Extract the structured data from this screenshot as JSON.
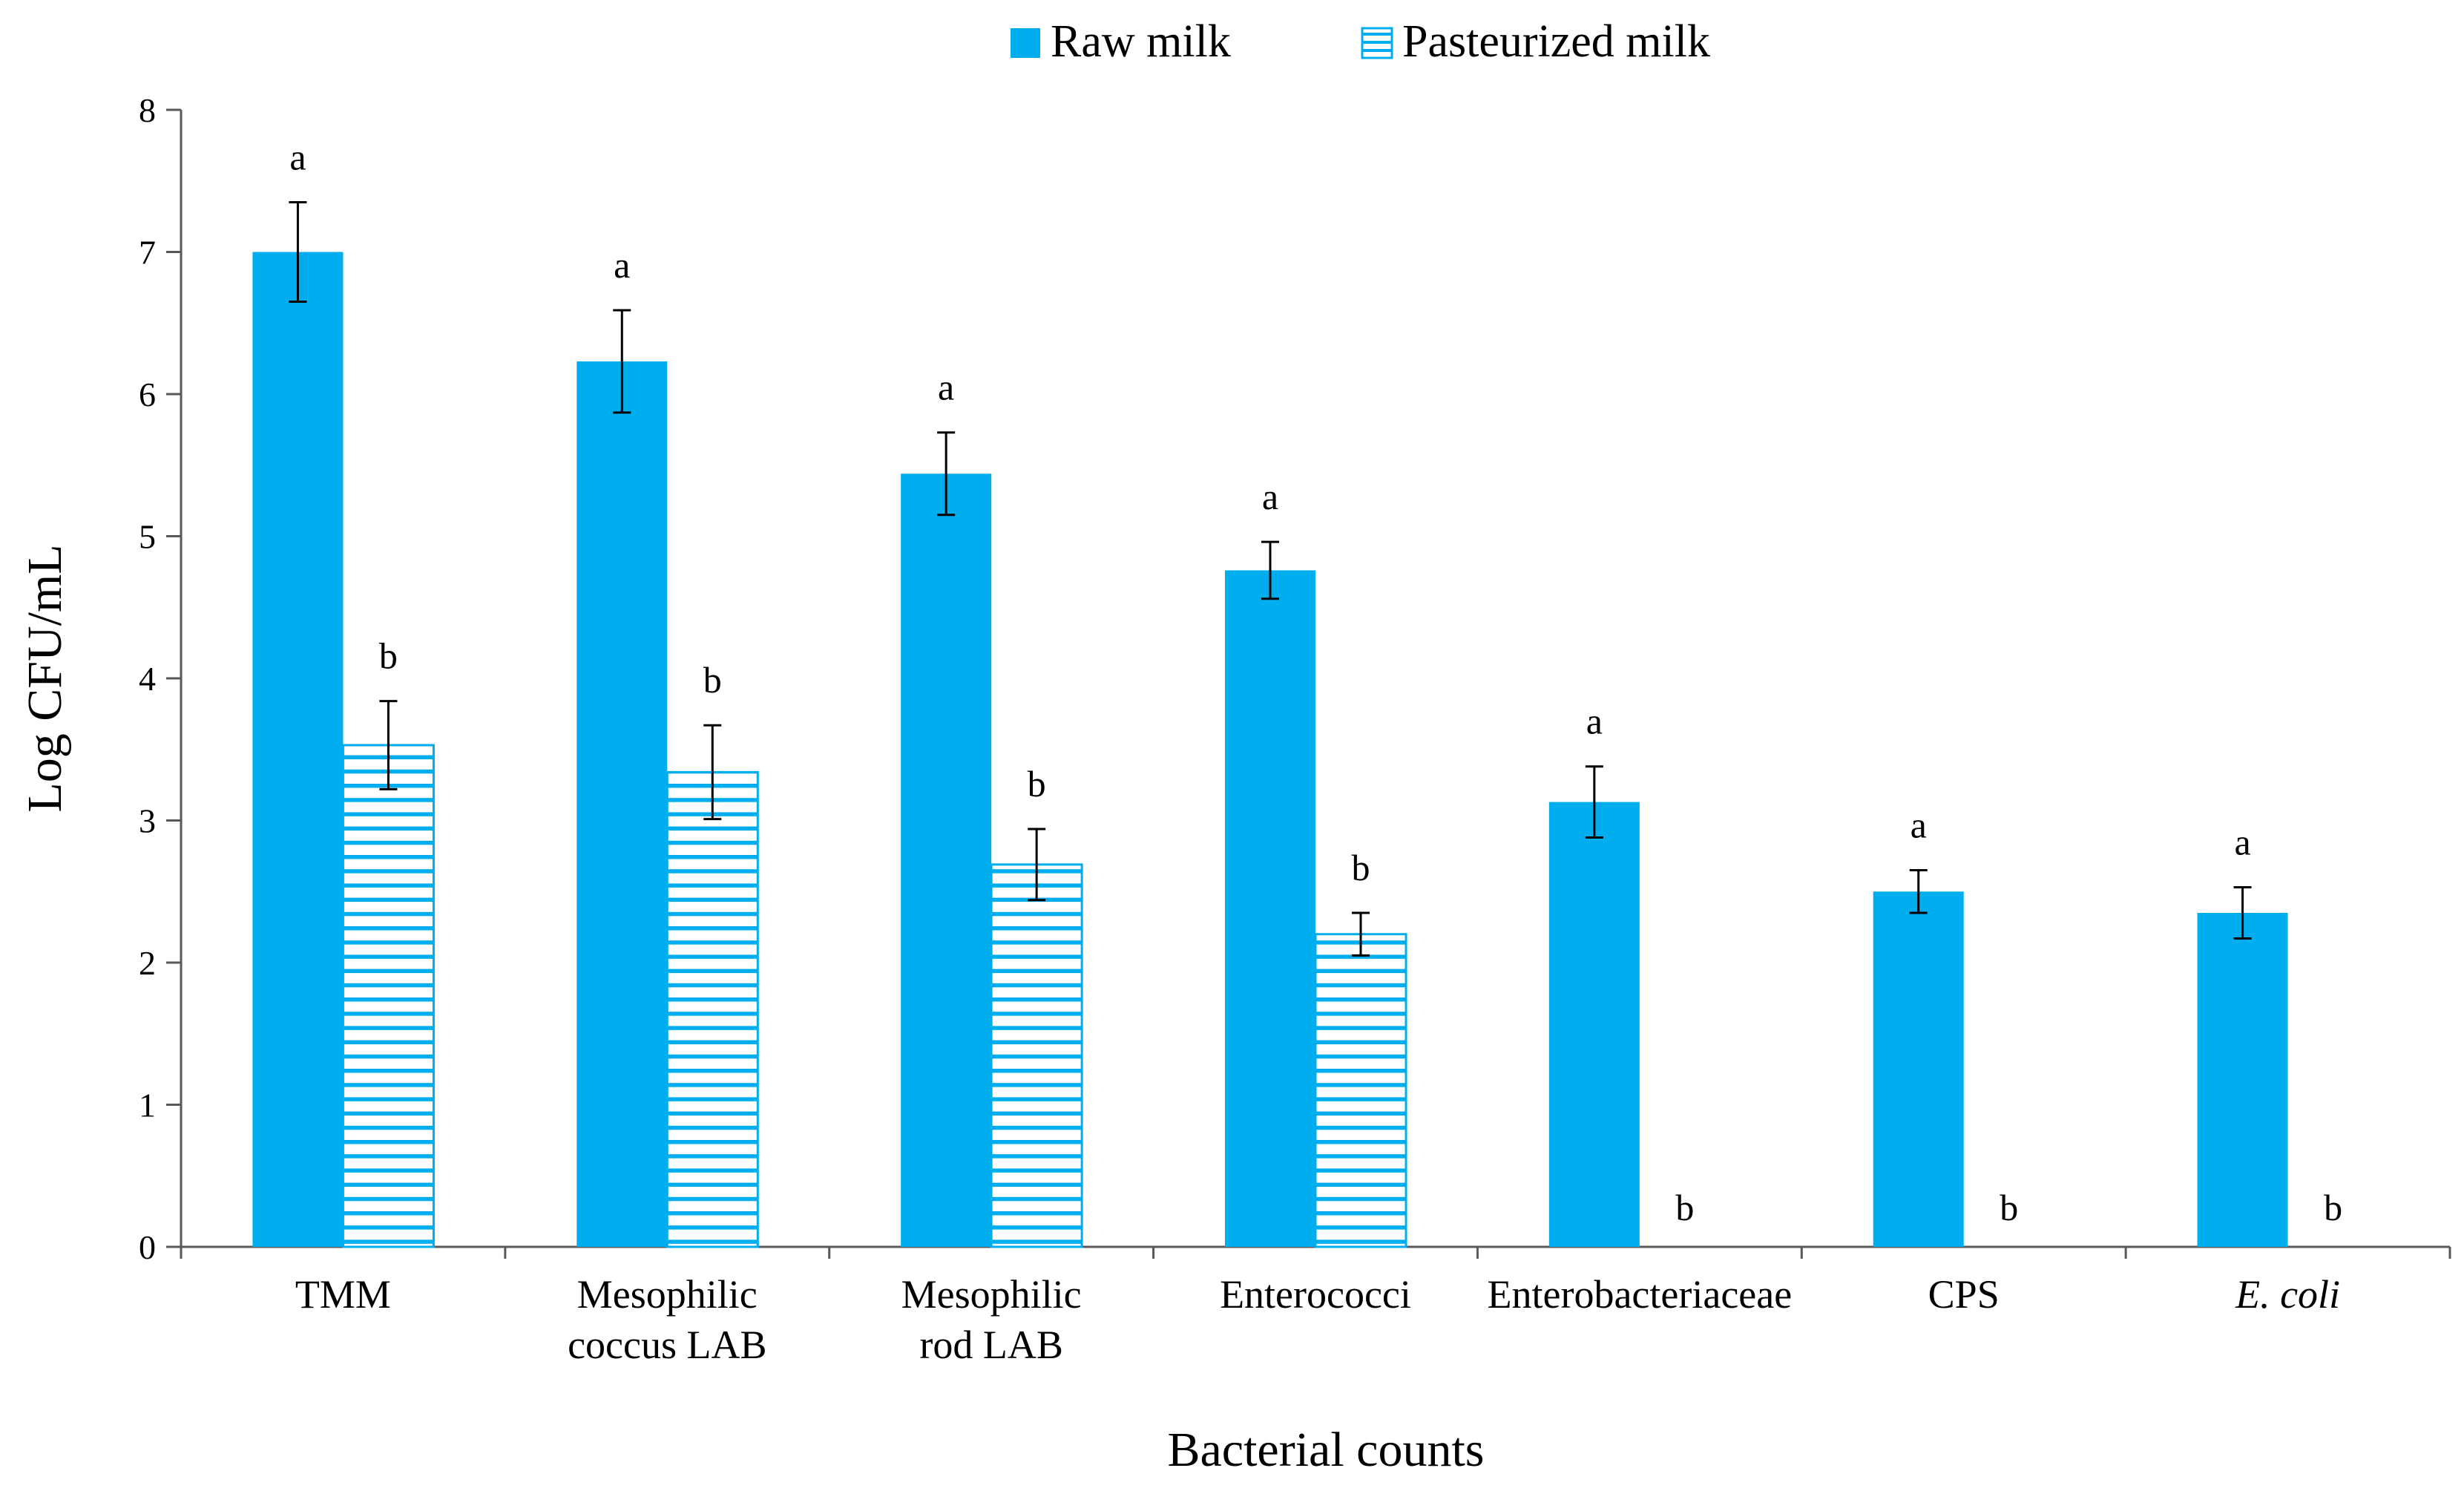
{
  "chart_data": {
    "type": "bar",
    "title": "",
    "xlabel": "Bacterial counts",
    "ylabel": "Log CFU/mL",
    "ylim": [
      0,
      8
    ],
    "yticks": [
      "0",
      "1",
      "2",
      "3",
      "4",
      "5",
      "6",
      "7",
      "8"
    ],
    "grid": false,
    "legend_position": "top-center",
    "categories": [
      {
        "lines": [
          "TMM"
        ],
        "italic": false
      },
      {
        "lines": [
          "Mesophilic",
          "coccus LAB"
        ],
        "italic": false
      },
      {
        "lines": [
          "Mesophilic",
          "rod LAB"
        ],
        "italic": false
      },
      {
        "lines": [
          "Enterococci"
        ],
        "italic": false
      },
      {
        "lines": [
          "Enterobacteriaceae"
        ],
        "italic": false
      },
      {
        "lines": [
          "CPS"
        ],
        "italic": false
      },
      {
        "lines": [
          "E. coli"
        ],
        "italic": true
      }
    ],
    "series": [
      {
        "name": "Raw milk",
        "style": "solid",
        "color": "#00AEEF",
        "values": [
          7.0,
          6.23,
          5.44,
          4.76,
          3.13,
          2.5,
          2.35
        ],
        "errors": [
          0.35,
          0.36,
          0.29,
          0.2,
          0.25,
          0.15,
          0.18
        ],
        "significance": [
          "a",
          "a",
          "a",
          "a",
          "a",
          "a",
          "a"
        ]
      },
      {
        "name": "Pasteurized milk",
        "style": "horizontal-stripes",
        "color": "#00AEEF",
        "values": [
          3.53,
          3.34,
          2.69,
          2.2,
          0,
          0,
          0
        ],
        "errors": [
          0.31,
          0.33,
          0.25,
          0.15,
          0,
          0,
          0
        ],
        "significance": [
          "b",
          "b",
          "b",
          "b",
          "b",
          "b",
          "b"
        ]
      }
    ]
  }
}
